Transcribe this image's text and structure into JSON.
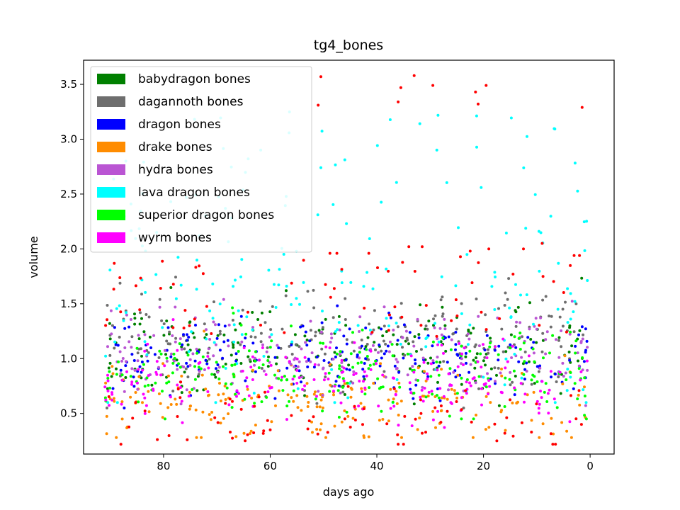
{
  "chart_data": {
    "type": "scatter",
    "title": "tg4_bones",
    "xlabel": "days ago",
    "ylabel": "volume",
    "xlim": [
      95,
      -4.5
    ],
    "ylim": [
      0.13,
      3.72
    ],
    "x_ticks": [
      80,
      60,
      40,
      20,
      0
    ],
    "y_ticks": [
      0.5,
      1.0,
      1.5,
      2.0,
      2.5,
      3.0,
      3.5
    ],
    "x_tick_labels": [
      "80",
      "60",
      "40",
      "20",
      "0"
    ],
    "y_tick_labels": [
      "0.5",
      "1.0",
      "1.5",
      "2.0",
      "2.5",
      "3.0",
      "3.5"
    ],
    "grid": false,
    "legend_position": "upper-left",
    "x_range": [
      0.5,
      91
    ],
    "points_per_series": 200,
    "series": [
      {
        "name": "babydragon bones",
        "color": "#008000",
        "center": 1.08,
        "spread": 0.22,
        "lo": 0.55,
        "hi": 1.85
      },
      {
        "name": "dagannoth bones",
        "color": "#6e6e6e",
        "center": 1.15,
        "spread": 0.22,
        "lo": 0.55,
        "hi": 2.0
      },
      {
        "name": "dragon bones",
        "color": "#0000ff",
        "center": 1.0,
        "spread": 0.17,
        "lo": 0.55,
        "hi": 1.55
      },
      {
        "name": "drake bones",
        "color": "#ff8c00",
        "center": 0.6,
        "spread": 0.18,
        "lo": 0.28,
        "hi": 1.25
      },
      {
        "name": "hydra bones",
        "color": "#ba55d3",
        "center": 1.05,
        "spread": 0.2,
        "lo": 0.55,
        "hi": 1.6
      },
      {
        "name": "lava dragon bones",
        "color": "#00ffff",
        "center": 1.45,
        "spread": 0.55,
        "lo": 0.6,
        "hi": 3.3
      },
      {
        "name": "superior dragon bones",
        "color": "#00ff00",
        "center": 0.9,
        "spread": 0.2,
        "lo": 0.45,
        "hi": 1.5
      },
      {
        "name": "wyrm bones",
        "color": "#ff00ff",
        "center": 0.8,
        "spread": 0.2,
        "lo": 0.35,
        "hi": 1.4
      }
    ],
    "outlier_series": {
      "color": "#ff0000",
      "count": 160,
      "points": [
        [
          50.5,
          3.57
        ],
        [
          51,
          3.31
        ],
        [
          33,
          3.58
        ],
        [
          35.5,
          3.47
        ],
        [
          36,
          3.34
        ],
        [
          29.5,
          3.49
        ],
        [
          21.5,
          3.43
        ],
        [
          21,
          3.32
        ],
        [
          19.5,
          3.49
        ],
        [
          1.5,
          3.29
        ],
        [
          34,
          2.02
        ],
        [
          47.5,
          1.96
        ],
        [
          48.8,
          1.96
        ],
        [
          41.5,
          1.96
        ],
        [
          31.5,
          2.02
        ],
        [
          22.5,
          1.98
        ],
        [
          19,
          2.0
        ],
        [
          2,
          1.94
        ],
        [
          3,
          1.94
        ],
        [
          9,
          2.05
        ],
        [
          12.5,
          2.0
        ],
        [
          88,
          0.22
        ],
        [
          60,
          0.35
        ],
        [
          67.5,
          0.33
        ],
        [
          46,
          0.45
        ],
        [
          44,
          0.44
        ],
        [
          36,
          0.22
        ],
        [
          35,
          0.22
        ],
        [
          31.5,
          0.32
        ],
        [
          28,
          0.42
        ],
        [
          17.5,
          0.25
        ],
        [
          16,
          0.32
        ],
        [
          7,
          0.22
        ],
        [
          6.5,
          0.22
        ],
        [
          11,
          0.33
        ]
      ]
    }
  }
}
